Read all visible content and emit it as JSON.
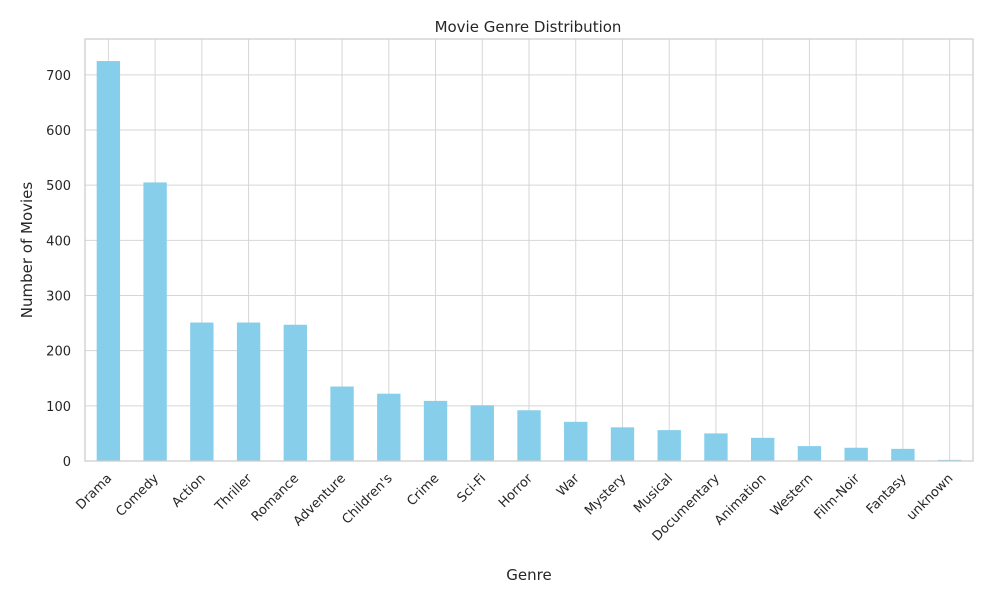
{
  "chart_data": {
    "type": "bar",
    "title": "Movie Genre Distribution",
    "xlabel": "Genre",
    "ylabel": "Number of Movies",
    "categories": [
      "Drama",
      "Comedy",
      "Action",
      "Thriller",
      "Romance",
      "Adventure",
      "Children's",
      "Crime",
      "Sci-Fi",
      "Horror",
      "War",
      "Mystery",
      "Musical",
      "Documentary",
      "Animation",
      "Western",
      "Film-Noir",
      "Fantasy",
      "unknown"
    ],
    "values": [
      725,
      505,
      251,
      251,
      247,
      135,
      122,
      109,
      101,
      92,
      71,
      61,
      56,
      50,
      42,
      27,
      24,
      22,
      2
    ],
    "ylim": [
      0,
      765
    ],
    "yticks": [
      0,
      100,
      200,
      300,
      400,
      500,
      600,
      700
    ],
    "grid": true,
    "bar_color": "#87ceeb"
  }
}
